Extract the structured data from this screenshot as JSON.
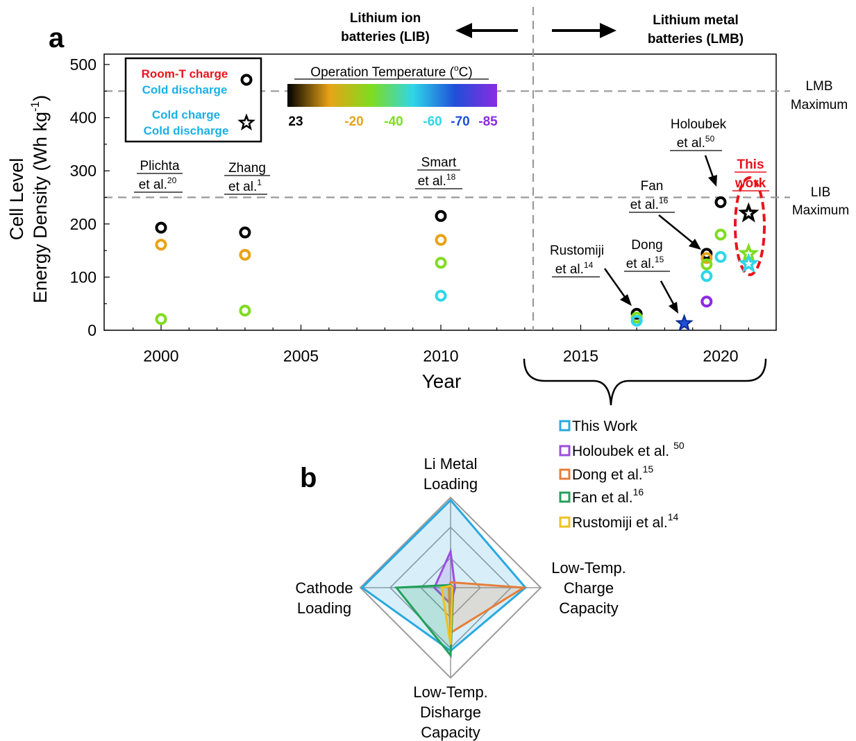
{
  "panel_a": {
    "label": "a",
    "lib_header": [
      "Lithium ion",
      "batteries (LIB)"
    ],
    "lmb_header": [
      "Lithium metal",
      "batteries (LMB)"
    ],
    "lmb_max": [
      "LMB",
      "Maximum"
    ],
    "lib_max": [
      "LIB",
      "Maximum"
    ],
    "legend": {
      "room_charge": "Room-T charge",
      "cold_discharge_1": "Cold discharge",
      "cold_charge": "Cold charge",
      "cold_discharge_2": "Cold discharge",
      "circle_icon": "ring-marker-icon",
      "star_icon": "star-marker-icon"
    },
    "colorbar": {
      "title": "Operation Temperature (",
      "title_sup": "o",
      "title_end": "C)",
      "ticks": [
        {
          "label": "23",
          "color": "#000000"
        },
        {
          "label": "-20",
          "color": "#e8a317"
        },
        {
          "label": "-40",
          "color": "#7fdc1f"
        },
        {
          "label": "-60",
          "color": "#2fd6e8"
        },
        {
          "label": "-70",
          "color": "#1f4fd8"
        },
        {
          "label": "-85",
          "color": "#8a2be2"
        }
      ],
      "gradient": [
        "#000000",
        "#e8a317",
        "#7fdc1f",
        "#2fd6e8",
        "#1f4fd8",
        "#8a2be2"
      ]
    },
    "annotations": {
      "plichta": [
        "Plichta",
        "et al.",
        "20"
      ],
      "zhang": [
        "Zhang",
        "et al.",
        "1"
      ],
      "smart": [
        "Smart",
        "et al.",
        "18"
      ],
      "holoubek": [
        "Holoubek",
        "et al.",
        "50"
      ],
      "fan": [
        "Fan",
        "et al.",
        "16"
      ],
      "dong": [
        "Dong",
        "et al.",
        "15"
      ],
      "rustomiji": [
        "Rustomiji",
        "et al.",
        "14"
      ],
      "this_work": [
        "This",
        "work"
      ]
    },
    "highlight_color": "#e8141c"
  },
  "chart_data": [
    {
      "type": "scatter",
      "xlabel": "Year",
      "ylabel": "Energy Density (Wh kg",
      "ylabel_sup": "-1",
      "ylabel_end": ")",
      "ylabel_line1": "Cell Level",
      "xlim": [
        1998,
        2022
      ],
      "ylim": [
        0,
        520
      ],
      "xticks": [
        2000,
        2005,
        2010,
        2015,
        2020
      ],
      "yticks": [
        0,
        100,
        200,
        300,
        400,
        500
      ],
      "reference_lines": [
        {
          "name": "LMB Maximum",
          "y": 450
        },
        {
          "name": "LIB Maximum",
          "y": 250
        }
      ],
      "divider_x": 2013.3,
      "points": [
        {
          "x": 2000,
          "y": 193,
          "temp": "23",
          "marker": "circle",
          "color": "#000000"
        },
        {
          "x": 2000,
          "y": 161,
          "temp": "-20",
          "marker": "circle",
          "color": "#e8a317"
        },
        {
          "x": 2000,
          "y": 21,
          "temp": "-40",
          "marker": "circle",
          "color": "#7fdc1f"
        },
        {
          "x": 2003,
          "y": 184,
          "temp": "23",
          "marker": "circle",
          "color": "#000000"
        },
        {
          "x": 2003,
          "y": 142,
          "temp": "-20",
          "marker": "circle",
          "color": "#e8a317"
        },
        {
          "x": 2003,
          "y": 37,
          "temp": "-40",
          "marker": "circle",
          "color": "#7fdc1f"
        },
        {
          "x": 2010,
          "y": 215,
          "temp": "23",
          "marker": "circle",
          "color": "#000000"
        },
        {
          "x": 2010,
          "y": 170,
          "temp": "-20",
          "marker": "circle",
          "color": "#e8a317"
        },
        {
          "x": 2010,
          "y": 127,
          "temp": "-40",
          "marker": "circle",
          "color": "#7fdc1f"
        },
        {
          "x": 2010,
          "y": 65,
          "temp": "-60",
          "marker": "circle",
          "color": "#2fd6e8"
        },
        {
          "x": 2017,
          "y": 31,
          "temp": "23",
          "marker": "circle",
          "color": "#000000"
        },
        {
          "x": 2017,
          "y": 24,
          "temp": "-40",
          "marker": "circle",
          "color": "#7fdc1f"
        },
        {
          "x": 2017,
          "y": 18,
          "temp": "-60",
          "marker": "circle",
          "color": "#2fd6e8"
        },
        {
          "x": 2018.7,
          "y": 13,
          "temp": "-70",
          "marker": "star",
          "color": "#1f4fd8"
        },
        {
          "x": 2019.5,
          "y": 144,
          "temp": "23",
          "marker": "circle",
          "color": "#000000"
        },
        {
          "x": 2019.5,
          "y": 136,
          "temp": "-20",
          "marker": "circle",
          "color": "#e8a317"
        },
        {
          "x": 2019.5,
          "y": 124,
          "temp": "-40",
          "marker": "circle",
          "color": "#7fdc1f"
        },
        {
          "x": 2019.5,
          "y": 102,
          "temp": "-60",
          "marker": "circle",
          "color": "#2fd6e8"
        },
        {
          "x": 2019.5,
          "y": 54,
          "temp": "-85",
          "marker": "circle",
          "color": "#8a2be2"
        },
        {
          "x": 2020,
          "y": 241,
          "temp": "23",
          "marker": "circle",
          "color": "#000000"
        },
        {
          "x": 2020,
          "y": 180,
          "temp": "-40",
          "marker": "circle",
          "color": "#7fdc1f"
        },
        {
          "x": 2020,
          "y": 138,
          "temp": "-60",
          "marker": "circle",
          "color": "#2fd6e8"
        },
        {
          "x": 2021,
          "y": 220,
          "temp": "23",
          "marker": "star",
          "color": "#000000"
        },
        {
          "x": 2021,
          "y": 144,
          "temp": "-40",
          "marker": "star",
          "color": "#7fdc1f"
        },
        {
          "x": 2021,
          "y": 125,
          "temp": "-60",
          "marker": "star",
          "color": "#2fd6e8"
        }
      ]
    },
    {
      "type": "radar",
      "label": "b",
      "axes": [
        {
          "lines": [
            "Li Metal",
            "Loading"
          ]
        },
        {
          "lines": [
            "Low-Temp.",
            "Charge",
            "Capacity"
          ]
        },
        {
          "lines": [
            "Low-Temp.",
            "Disharge",
            "Capacity"
          ]
        },
        {
          "lines": [
            "Cathode",
            "Loading"
          ]
        }
      ],
      "rmax": 1.0,
      "grid_levels": [
        0.33,
        0.67,
        1.0
      ],
      "series": [
        {
          "name": "This Work",
          "sup": "",
          "color": "#29a8e0",
          "values": [
            0.97,
            0.83,
            0.7,
            0.98
          ]
        },
        {
          "name": "Holoubek et al.",
          "sup": "50",
          "color": "#9b4fe0",
          "values": [
            0.4,
            0.05,
            0.18,
            0.18
          ]
        },
        {
          "name": "Dong et al.",
          "sup": "15",
          "color": "#e67e3a",
          "values": [
            0.06,
            0.81,
            0.5,
            0.02
          ]
        },
        {
          "name": "Fan et al.",
          "sup": "16",
          "color": "#22a05a",
          "values": [
            0.03,
            0.03,
            0.75,
            0.6
          ]
        },
        {
          "name": "Rustomiji et al.",
          "sup": "14",
          "color": "#f0c020",
          "values": [
            0.02,
            0.02,
            0.63,
            0.1
          ]
        }
      ]
    }
  ]
}
